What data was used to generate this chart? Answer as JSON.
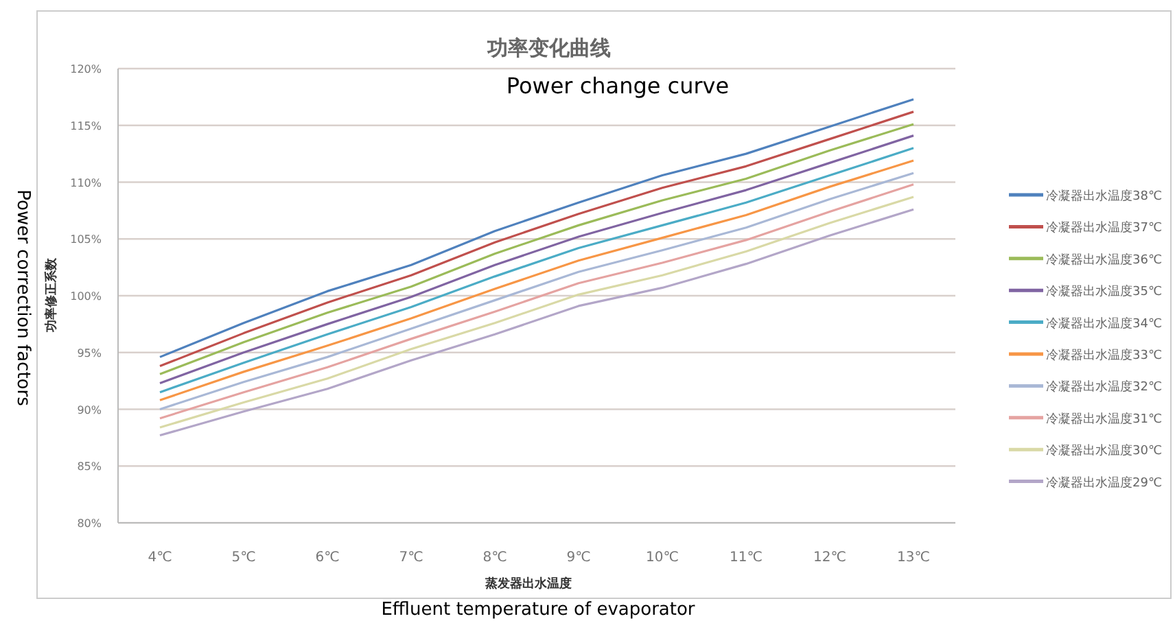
{
  "chart_data": {
    "type": "line",
    "title": "功率变化曲线",
    "subtitle": "Power change curve",
    "ylabel": "功率修正系数",
    "xlabel": "蒸发器出水温度",
    "annotations": [
      "Power correction factors",
      "Effluent temperature of evaporator"
    ],
    "categories": [
      "4℃",
      "5℃",
      "6℃",
      "7℃",
      "8℃",
      "9℃",
      "10℃",
      "11℃",
      "12℃",
      "13℃"
    ],
    "ylim": [
      80,
      120
    ],
    "yticks": [
      {
        "value": 80,
        "label": "80%"
      },
      {
        "value": 85,
        "label": "85%"
      },
      {
        "value": 90,
        "label": "90%"
      },
      {
        "value": 95,
        "label": "95%"
      },
      {
        "value": 100,
        "label": "100%"
      },
      {
        "value": 105,
        "label": "105%"
      },
      {
        "value": 110,
        "label": "110%"
      },
      {
        "value": 115,
        "label": "115%"
      },
      {
        "value": 120,
        "label": "120%"
      }
    ],
    "grid": "y",
    "legend": "right",
    "marker": "none",
    "line_style": "solid",
    "series": [
      {
        "name": "冷凝器出水温度38℃",
        "color": "#4f81bd",
        "values": [
          94.6,
          97.6,
          100.4,
          102.7,
          105.7,
          108.2,
          110.6,
          112.5,
          114.9,
          117.3
        ]
      },
      {
        "name": "冷凝器出水温度37℃",
        "color": "#c0504d",
        "values": [
          93.8,
          96.7,
          99.4,
          101.8,
          104.7,
          107.2,
          109.5,
          111.4,
          113.8,
          116.2
        ]
      },
      {
        "name": "冷凝器出水温度36℃",
        "color": "#9bbb59",
        "values": [
          93.1,
          95.9,
          98.5,
          100.8,
          103.7,
          106.2,
          108.4,
          110.3,
          112.8,
          115.1
        ]
      },
      {
        "name": "冷凝器出水温度35℃",
        "color": "#8064a2",
        "values": [
          92.3,
          95.0,
          97.5,
          99.9,
          102.7,
          105.2,
          107.3,
          109.3,
          111.7,
          114.1
        ]
      },
      {
        "name": "冷凝器出水温度34℃",
        "color": "#4bacc6",
        "values": [
          91.5,
          94.1,
          96.6,
          99.0,
          101.7,
          104.2,
          106.2,
          108.2,
          110.6,
          113.0
        ]
      },
      {
        "name": "冷凝器出水温度33℃",
        "color": "#f79646",
        "values": [
          90.8,
          93.3,
          95.6,
          98.0,
          100.6,
          103.1,
          105.1,
          107.1,
          109.6,
          111.9
        ]
      },
      {
        "name": "冷凝器出水温度32℃",
        "color": "#a9b8d6",
        "values": [
          90.0,
          92.4,
          94.6,
          97.1,
          99.6,
          102.1,
          104.0,
          106.0,
          108.5,
          110.8
        ]
      },
      {
        "name": "冷凝器出水温度31℃",
        "color": "#e5a3a1",
        "values": [
          89.2,
          91.5,
          93.7,
          96.2,
          98.6,
          101.1,
          102.9,
          104.9,
          107.4,
          109.8
        ]
      },
      {
        "name": "冷凝器出水温度30℃",
        "color": "#d9d9a6",
        "values": [
          88.4,
          90.6,
          92.7,
          95.3,
          97.6,
          100.1,
          101.8,
          103.9,
          106.4,
          108.7
        ]
      },
      {
        "name": "冷凝器出水温度29℃",
        "color": "#b3a6c8",
        "values": [
          87.7,
          89.8,
          91.8,
          94.3,
          96.6,
          99.1,
          100.7,
          102.8,
          105.3,
          107.6
        ]
      }
    ]
  }
}
